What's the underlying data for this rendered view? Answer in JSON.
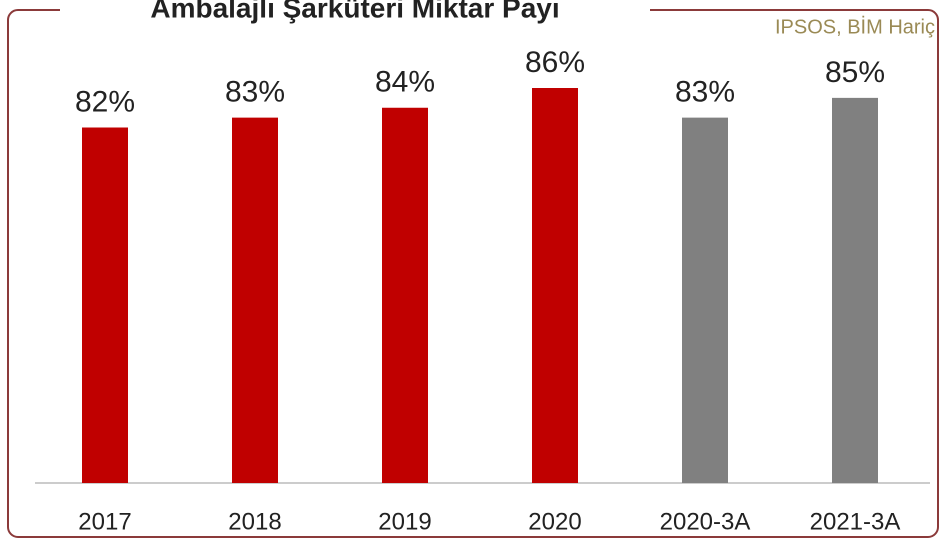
{
  "chart_data": {
    "type": "bar",
    "title": "Ambalajlı Şarküteri Miktar Payı",
    "note": "IPSOS, BİM Hariç",
    "categories": [
      "2017",
      "2018",
      "2019",
      "2020",
      "2020-3A",
      "2021-3A"
    ],
    "values": [
      82,
      83,
      84,
      86,
      83,
      85
    ],
    "value_labels": [
      "82%",
      "83%",
      "84%",
      "86%",
      "83%",
      "85%"
    ],
    "colors": [
      "#c00000",
      "#c00000",
      "#c00000",
      "#c00000",
      "#808080",
      "#808080"
    ],
    "ylim": [
      46,
      90
    ]
  }
}
